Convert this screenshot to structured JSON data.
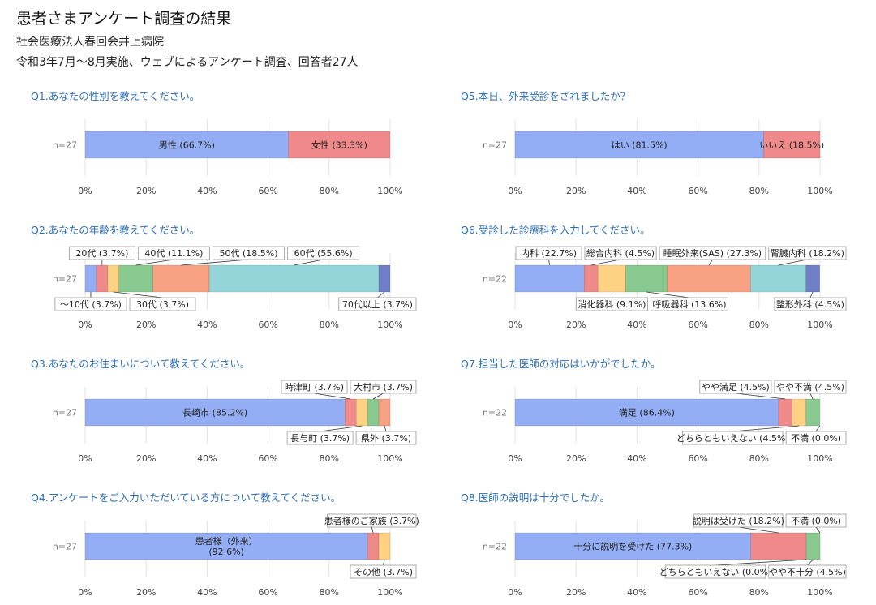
{
  "page": {
    "title": "患者さまアンケート調査の結果",
    "subtitle": "社会医療法人春回会井上病院",
    "note": "令和3年7月～8月実施、ウェブによるアンケート調査、回答者27人"
  },
  "colors": {
    "blue": "#93aef5",
    "red": "#f0898a",
    "orange_light": "#fdd283",
    "green": "#87c98f",
    "salmon": "#f9a183",
    "teal": "#93d5d8",
    "navy": "#6f7fc6",
    "title": "#2c6fb7"
  },
  "chart_data": [
    {
      "id": "q1",
      "type": "bar",
      "orientation": "horizontal",
      "stacked": true,
      "title": "Q1.あなたの性別を教えてください。",
      "category": "n=27",
      "xlim": [
        0,
        100
      ],
      "xticks": [
        "0%",
        "20%",
        "40%",
        "60%",
        "80%",
        "100%"
      ],
      "series": [
        {
          "name": "男性",
          "value": 66.7,
          "label": "男性 (66.7%)",
          "color": "#93aef5",
          "label_pos": "inside"
        },
        {
          "name": "女性",
          "value": 33.3,
          "label": "女性 (33.3%)",
          "color": "#f0898a",
          "label_pos": "inside"
        }
      ]
    },
    {
      "id": "q2",
      "type": "bar",
      "orientation": "horizontal",
      "stacked": true,
      "title": "Q2.あなたの年齢を教えてください。",
      "category": "n=27",
      "xlim": [
        0,
        100
      ],
      "xticks": [
        "0%",
        "20%",
        "40%",
        "60%",
        "80%",
        "100%"
      ],
      "series": [
        {
          "name": "～10代",
          "value": 3.7,
          "label": "～10代 (3.7%)",
          "color": "#93aef5",
          "label_pos": "below"
        },
        {
          "name": "20代",
          "value": 3.7,
          "label": "20代 (3.7%)",
          "color": "#f0898a",
          "label_pos": "above"
        },
        {
          "name": "30代",
          "value": 3.7,
          "label": "30代 (3.7%)",
          "color": "#fdd283",
          "label_pos": "below"
        },
        {
          "name": "40代",
          "value": 11.1,
          "label": "40代 (11.1%)",
          "color": "#87c98f",
          "label_pos": "above"
        },
        {
          "name": "50代",
          "value": 18.5,
          "label": "50代 (18.5%)",
          "color": "#f9a183",
          "label_pos": "above"
        },
        {
          "name": "60代",
          "value": 55.6,
          "label": "60代 (55.6%)",
          "color": "#93d5d8",
          "label_pos": "above"
        },
        {
          "name": "70代以上",
          "value": 3.7,
          "label": "70代以上 (3.7%)",
          "color": "#6f7fc6",
          "label_pos": "below"
        }
      ]
    },
    {
      "id": "q3",
      "type": "bar",
      "orientation": "horizontal",
      "stacked": true,
      "title": "Q3.あなたのお住まいについて教えてください。",
      "category": "n=27",
      "xlim": [
        0,
        100
      ],
      "xticks": [
        "0%",
        "20%",
        "40%",
        "60%",
        "80%",
        "100%"
      ],
      "series": [
        {
          "name": "長崎市",
          "value": 85.2,
          "label": "長崎市 (85.2%)",
          "color": "#93aef5",
          "label_pos": "inside"
        },
        {
          "name": "時津町",
          "value": 3.7,
          "label": "時津町 (3.7%)",
          "color": "#f0898a",
          "label_pos": "above"
        },
        {
          "name": "長与町",
          "value": 3.7,
          "label": "長与町 (3.7%)",
          "color": "#fdd283",
          "label_pos": "below"
        },
        {
          "name": "大村市",
          "value": 3.7,
          "label": "大村市 (3.7%)",
          "color": "#87c98f",
          "label_pos": "above"
        },
        {
          "name": "県外",
          "value": 3.7,
          "label": "県外 (3.7%)",
          "color": "#f9a183",
          "label_pos": "below"
        }
      ]
    },
    {
      "id": "q4",
      "type": "bar",
      "orientation": "horizontal",
      "stacked": true,
      "title": "Q4.アンケートをご入力いただいている方について教えてください。",
      "category": "n=27",
      "xlim": [
        0,
        100
      ],
      "xticks": [
        "0%",
        "20%",
        "40%",
        "60%",
        "80%",
        "100%"
      ],
      "series": [
        {
          "name": "患者様（外来）",
          "value": 92.6,
          "label": "患者様（外来）\n(92.6%)",
          "color": "#93aef5",
          "label_pos": "inside"
        },
        {
          "name": "患者様のご家族",
          "value": 3.7,
          "label": "患者様のご家族 (3.7%)",
          "color": "#f0898a",
          "label_pos": "above"
        },
        {
          "name": "その他",
          "value": 3.7,
          "label": "その他 (3.7%)",
          "color": "#fdd283",
          "label_pos": "below"
        }
      ]
    },
    {
      "id": "q5",
      "type": "bar",
      "orientation": "horizontal",
      "stacked": true,
      "title": "Q5.本日、外来受診をされましたか？",
      "category": "n=27",
      "xlim": [
        0,
        100
      ],
      "xticks": [
        "0%",
        "20%",
        "40%",
        "60%",
        "80%",
        "100%"
      ],
      "series": [
        {
          "name": "はい",
          "value": 81.5,
          "label": "はい (81.5%)",
          "color": "#93aef5",
          "label_pos": "inside"
        },
        {
          "name": "いいえ",
          "value": 18.5,
          "label": "いいえ (18.5%)",
          "color": "#f0898a",
          "label_pos": "inside"
        }
      ]
    },
    {
      "id": "q6",
      "type": "bar",
      "orientation": "horizontal",
      "stacked": true,
      "title": "Q6.受診した診療科を入力してください。",
      "category": "n=22",
      "xlim": [
        0,
        100
      ],
      "xticks": [
        "0%",
        "20%",
        "40%",
        "60%",
        "80%",
        "100%"
      ],
      "series": [
        {
          "name": "内科",
          "value": 22.7,
          "label": "内科 (22.7%)",
          "color": "#93aef5",
          "label_pos": "above"
        },
        {
          "name": "総合内科",
          "value": 4.5,
          "label": "総合内科 (4.5%)",
          "color": "#f0898a",
          "label_pos": "above"
        },
        {
          "name": "消化器科",
          "value": 9.1,
          "label": "消化器科 (9.1%)",
          "color": "#fdd283",
          "label_pos": "below"
        },
        {
          "name": "呼吸器科",
          "value": 13.6,
          "label": "呼吸器科 (13.6%)",
          "color": "#87c98f",
          "label_pos": "below"
        },
        {
          "name": "睡眠外来(SAS)",
          "value": 27.3,
          "label": "睡眠外来(SAS) (27.3%)",
          "color": "#f9a183",
          "label_pos": "above"
        },
        {
          "name": "腎臓内科",
          "value": 18.2,
          "label": "腎臓内科 (18.2%)",
          "color": "#93d5d8",
          "label_pos": "above"
        },
        {
          "name": "整形外科",
          "value": 4.5,
          "label": "整形外科 (4.5%)",
          "color": "#6f7fc6",
          "label_pos": "below"
        }
      ]
    },
    {
      "id": "q7",
      "type": "bar",
      "orientation": "horizontal",
      "stacked": true,
      "title": "Q7.担当した医師の対応はいかがでしたか。",
      "category": "n=22",
      "xlim": [
        0,
        100
      ],
      "xticks": [
        "0%",
        "20%",
        "40%",
        "60%",
        "80%",
        "100%"
      ],
      "series": [
        {
          "name": "満足",
          "value": 86.4,
          "label": "満足 (86.4%)",
          "color": "#93aef5",
          "label_pos": "inside"
        },
        {
          "name": "やや満足",
          "value": 4.5,
          "label": "やや満足 (4.5%)",
          "color": "#f0898a",
          "label_pos": "above"
        },
        {
          "name": "どちらともいえない",
          "value": 4.5,
          "label": "どちらともいえない (4.5%)",
          "color": "#fdd283",
          "label_pos": "below"
        },
        {
          "name": "やや不満",
          "value": 4.5,
          "label": "やや不満 (4.5%)",
          "color": "#87c98f",
          "label_pos": "above"
        },
        {
          "name": "不満",
          "value": 0.0,
          "label": "不満 (0.0%)",
          "color": "#f9a183",
          "label_pos": "below"
        }
      ]
    },
    {
      "id": "q8",
      "type": "bar",
      "orientation": "horizontal",
      "stacked": true,
      "title": "Q8.医師の説明は十分でしたか。",
      "category": "n=22",
      "xlim": [
        0,
        100
      ],
      "xticks": [
        "0%",
        "20%",
        "40%",
        "60%",
        "80%",
        "100%"
      ],
      "series": [
        {
          "name": "十分に説明を受けた",
          "value": 77.3,
          "label": "十分に説明を受けた (77.3%)",
          "color": "#93aef5",
          "label_pos": "inside"
        },
        {
          "name": "説明は受けた",
          "value": 18.2,
          "label": "説明は受けた (18.2%)",
          "color": "#f0898a",
          "label_pos": "above"
        },
        {
          "name": "どちらともいえない",
          "value": 0.0,
          "label": "どちらともいえない (0.0%)",
          "color": "#fdd283",
          "label_pos": "below"
        },
        {
          "name": "やや不十分",
          "value": 4.5,
          "label": "やや不十分 (4.5%)",
          "color": "#87c98f",
          "label_pos": "below"
        },
        {
          "name": "不満",
          "value": 0.0,
          "label": "不満 (0.0%)",
          "color": "#f9a183",
          "label_pos": "above"
        }
      ]
    }
  ]
}
